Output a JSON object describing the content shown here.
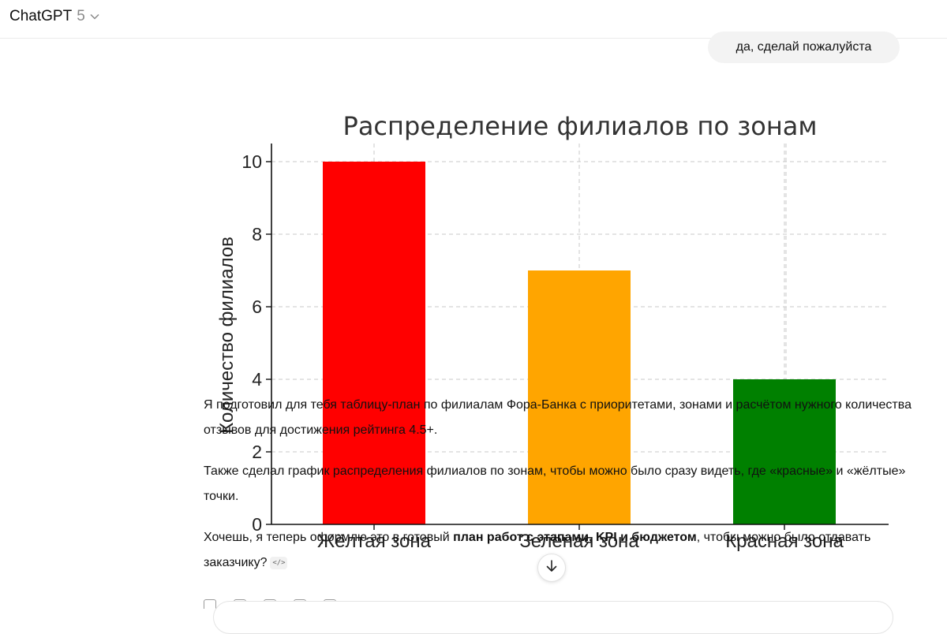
{
  "header": {
    "app_name": "ChatGPT",
    "model_version": "5",
    "chevron_icon": "chevron-down-icon"
  },
  "user_message": "да, сделай пожалуйста",
  "chart_data": {
    "type": "bar",
    "title": "Распределение филиалов по зонам",
    "xlabel": "",
    "ylabel": "Количество филиалов",
    "categories": [
      "Жёлтая зона",
      "Зелёная зона",
      "Красная зона"
    ],
    "values": [
      10,
      7,
      4
    ],
    "colors": [
      "#ff0000",
      "#ffa500",
      "#008000"
    ],
    "ylim": [
      0,
      10.5
    ],
    "yticks": [
      0,
      2,
      4,
      6,
      8,
      10
    ],
    "grid": true,
    "grid_style": "dashed"
  },
  "reply": {
    "p1": "Я подготовил для тебя таблицу-план по филиалам Фора-Банка с приоритетами, зонами и расчётом нужного количества отзывов для достижения рейтинга 4.5+.",
    "p2": "Также сделал график распределения филиалов по зонам, чтобы можно было сразу видеть, где «красные» и «жёлтые» точки.",
    "p3_before": "Хочешь, я теперь оформлю это в готовый ",
    "p3_bold": "план работ с этапами, KPI и бюджетом",
    "p3_after": ", чтобы можно было отдавать заказчику?",
    "code_chip": "</>"
  },
  "scroll_button_icon": "arrow-down-icon"
}
